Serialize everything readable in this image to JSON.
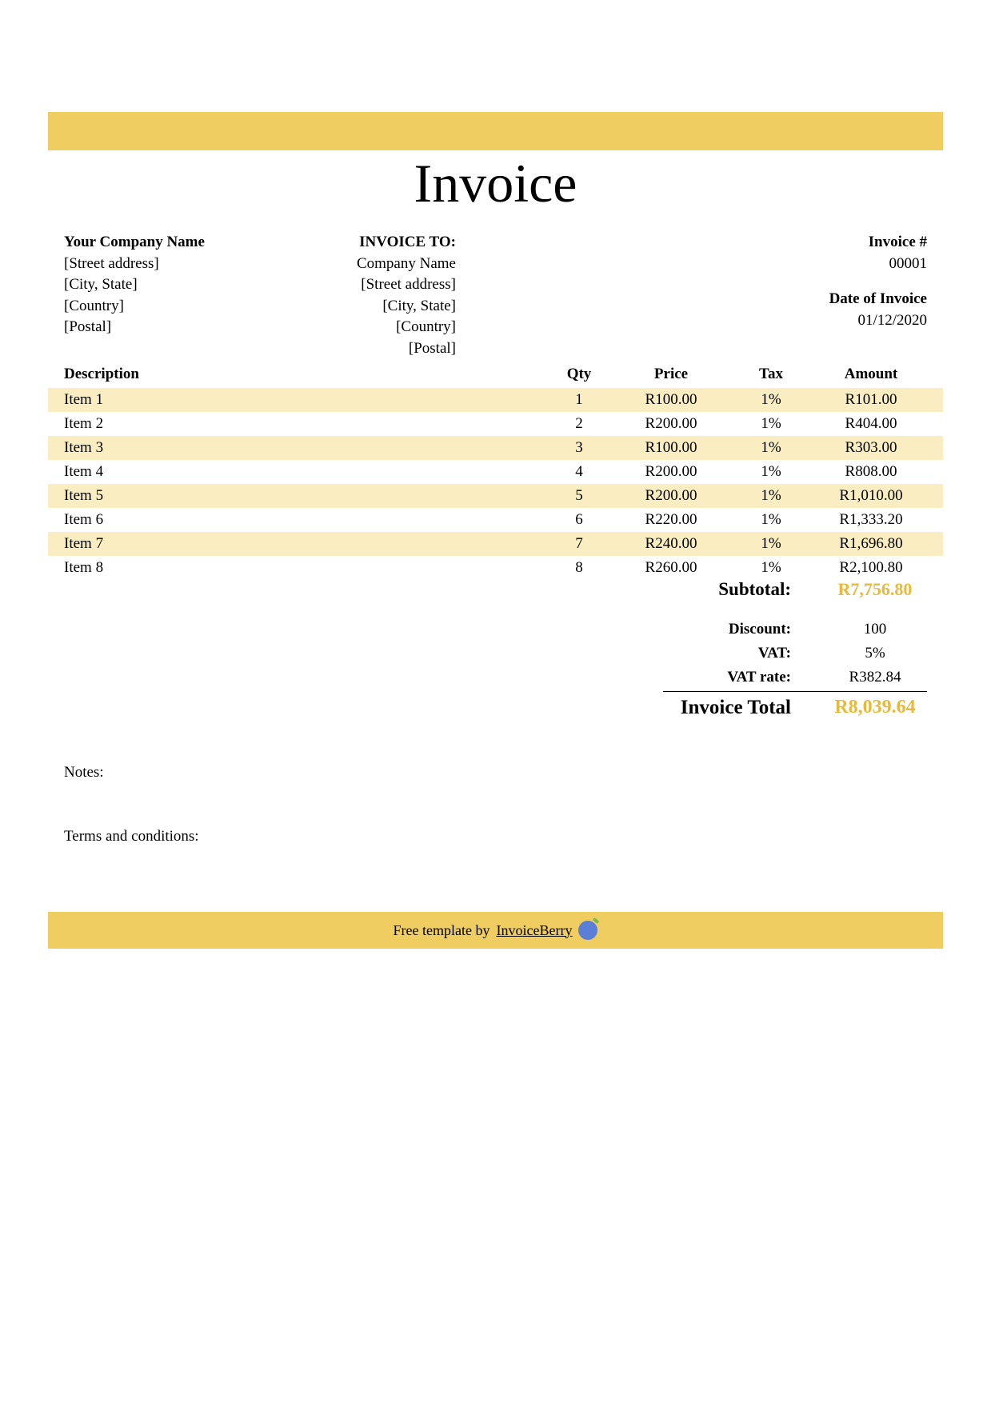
{
  "colors": {
    "header_bar": "#efcd61",
    "row_alt": "#f9edc1",
    "accent_text": "#e8b93a",
    "footer_bar": "#efcd61",
    "text": "#000000",
    "background": "#ffffff"
  },
  "title": "Invoice",
  "from": {
    "heading": "Your Company Name",
    "street": "[Street address]",
    "city": "[City, State]",
    "country": "[Country]",
    "postal": "[Postal]"
  },
  "to": {
    "heading": "INVOICE TO:",
    "company": "Company Name",
    "street": "[Street address]",
    "city": "[City, State]",
    "country": "[Country]",
    "postal": "[Postal]"
  },
  "meta": {
    "invoice_num_label": "Invoice #",
    "invoice_num": "00001",
    "date_label": "Date of Invoice",
    "date": "01/12/2020"
  },
  "table": {
    "headers": {
      "desc": "Description",
      "qty": "Qty",
      "price": "Price",
      "tax": "Tax",
      "amount": "Amount"
    },
    "rows": [
      {
        "desc": "Item 1",
        "qty": "1",
        "price": "R100.00",
        "tax": "1%",
        "amount": "R101.00"
      },
      {
        "desc": "Item 2",
        "qty": "2",
        "price": "R200.00",
        "tax": "1%",
        "amount": "R404.00"
      },
      {
        "desc": "Item 3",
        "qty": "3",
        "price": "R100.00",
        "tax": "1%",
        "amount": "R303.00"
      },
      {
        "desc": "Item 4",
        "qty": "4",
        "price": "R200.00",
        "tax": "1%",
        "amount": "R808.00"
      },
      {
        "desc": "Item 5",
        "qty": "5",
        "price": "R200.00",
        "tax": "1%",
        "amount": "R1,010.00"
      },
      {
        "desc": "Item 6",
        "qty": "6",
        "price": "R220.00",
        "tax": "1%",
        "amount": "R1,333.20"
      },
      {
        "desc": "Item 7",
        "qty": "7",
        "price": "R240.00",
        "tax": "1%",
        "amount": "R1,696.80"
      },
      {
        "desc": "Item 8",
        "qty": "8",
        "price": "R260.00",
        "tax": "1%",
        "amount": "R2,100.80"
      }
    ]
  },
  "summary": {
    "subtotal_label": "Subtotal:",
    "subtotal": "R7,756.80",
    "discount_label": "Discount:",
    "discount": "100",
    "vat_label": "VAT:",
    "vat": "5%",
    "vat_rate_label": "VAT rate:",
    "vat_rate": "R382.84",
    "total_label": "Invoice Total",
    "total": "R8,039.64"
  },
  "notes_label": "Notes:",
  "terms_label": "Terms and conditions:",
  "footer": {
    "prefix": "Free template by ",
    "link_text": "InvoiceBerry"
  }
}
